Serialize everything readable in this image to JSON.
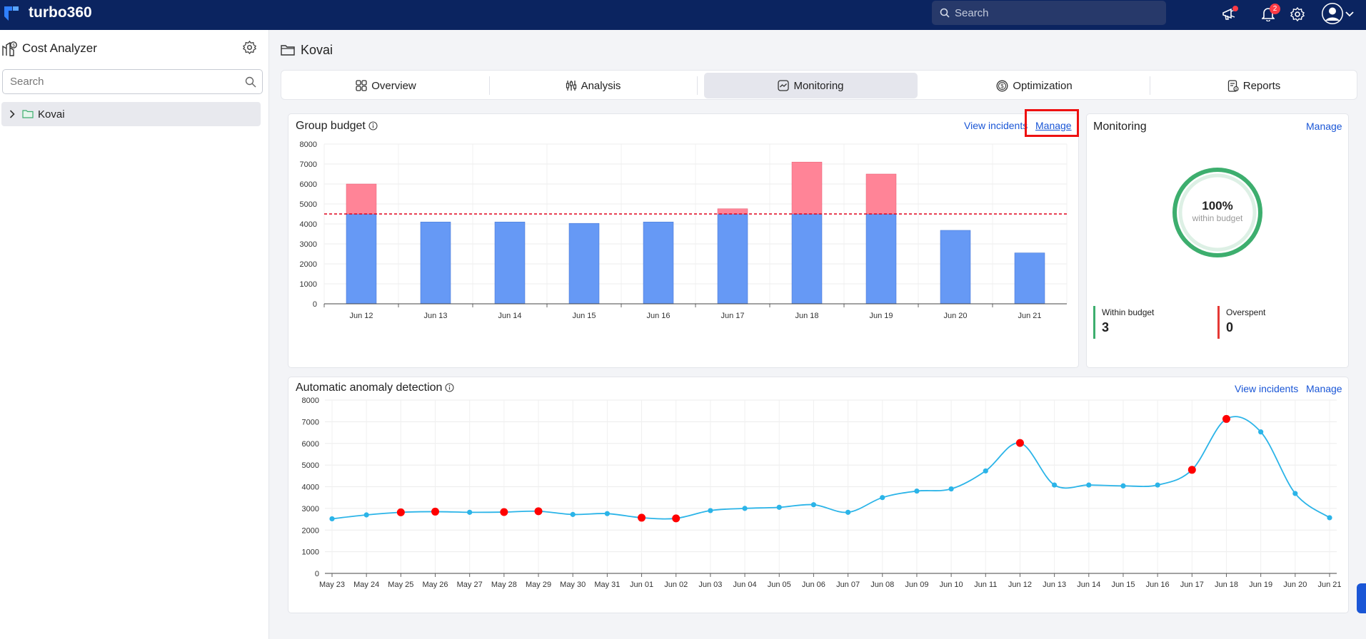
{
  "app": {
    "name": "turbo360"
  },
  "topbar": {
    "search_placeholder": "Search",
    "notification_count": "2",
    "icons": [
      "announcement-icon",
      "bell-icon",
      "gear-icon",
      "avatar",
      "chevron-down-icon"
    ]
  },
  "sidebar": {
    "title": "Cost Analyzer",
    "search_placeholder": "Search",
    "tree": [
      {
        "label": "Kovai",
        "icon": "folder-icon"
      }
    ]
  },
  "page": {
    "title": "Kovai"
  },
  "tabs": [
    {
      "label": "Overview",
      "icon": "overview-icon",
      "active": false
    },
    {
      "label": "Analysis",
      "icon": "analysis-icon",
      "active": false
    },
    {
      "label": "Monitoring",
      "icon": "monitoring-icon",
      "active": true
    },
    {
      "label": "Optimization",
      "icon": "optimization-icon",
      "active": false
    },
    {
      "label": "Reports",
      "icon": "reports-icon",
      "active": false
    }
  ],
  "group_budget": {
    "title": "Group budget",
    "view_incidents": "View incidents",
    "manage": "Manage"
  },
  "monitoring": {
    "title": "Monitoring",
    "manage": "Manage",
    "percent": "100%",
    "percent_label": "within budget",
    "within_label": "Within budget",
    "within_value": "3",
    "over_label": "Overspent",
    "over_value": "0",
    "colors": {
      "within": "#3dae6e",
      "over": "#e53935"
    }
  },
  "anomaly": {
    "title": "Automatic anomaly detection",
    "view_incidents": "View incidents",
    "manage": "Manage"
  },
  "chart_data": [
    {
      "type": "bar",
      "stacked": true,
      "categories": [
        "Jun 12",
        "Jun 13",
        "Jun 14",
        "Jun 15",
        "Jun 16",
        "Jun 17",
        "Jun 18",
        "Jun 19",
        "Jun 20",
        "Jun 21"
      ],
      "values": [
        6000,
        4100,
        4100,
        4030,
        4100,
        4760,
        7100,
        6500,
        3680,
        2550
      ],
      "budget": 4500,
      "ylim": [
        0,
        8000
      ],
      "yticks": [
        0,
        1000,
        2000,
        3000,
        4000,
        5000,
        6000,
        7000,
        8000
      ],
      "grid": true,
      "colors": {
        "within": "#6699f5",
        "over": "#ff8497",
        "budget_line": "#e0001b"
      }
    },
    {
      "type": "line",
      "x": [
        "May 23",
        "May 24",
        "May 25",
        "May 26",
        "May 27",
        "May 28",
        "May 29",
        "May 30",
        "May 31",
        "Jun 01",
        "Jun 02",
        "Jun 03",
        "Jun 04",
        "Jun 05",
        "Jun 06",
        "Jun 07",
        "Jun 08",
        "Jun 09",
        "Jun 10",
        "Jun 11",
        "Jun 12",
        "Jun 13",
        "Jun 14",
        "Jun 15",
        "Jun 16",
        "Jun 17",
        "Jun 18",
        "Jun 19",
        "Jun 20",
        "Jun 21"
      ],
      "values": [
        2520,
        2700,
        2820,
        2850,
        2820,
        2830,
        2870,
        2720,
        2760,
        2570,
        2540,
        2900,
        3000,
        3050,
        3170,
        2820,
        3500,
        3800,
        3900,
        4730,
        6020,
        4080,
        4080,
        4040,
        4080,
        4780,
        7130,
        6530,
        3690,
        2570
      ],
      "anomalies": [
        2,
        3,
        5,
        6,
        9,
        10,
        20,
        25,
        26
      ],
      "ylim": [
        0,
        8000
      ],
      "yticks": [
        0,
        1000,
        2000,
        3000,
        4000,
        5000,
        6000,
        7000,
        8000
      ],
      "grid": true,
      "colors": {
        "line": "#2bb4e8",
        "anomaly": "#ff0000"
      }
    }
  ]
}
